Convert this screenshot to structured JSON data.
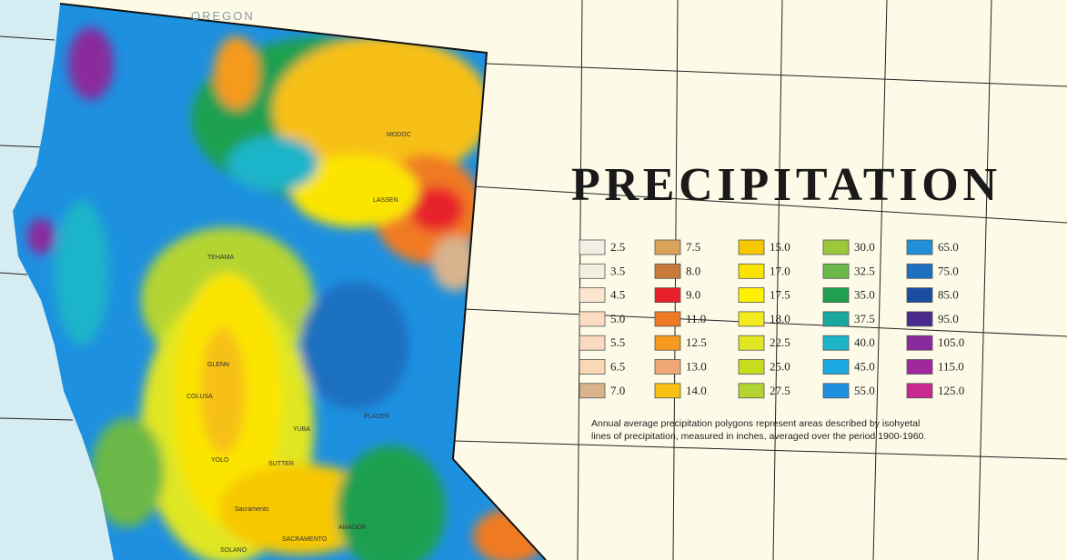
{
  "map": {
    "title": "PRECIPITATION",
    "note": [
      "Annual average precipitation polygons represent areas described by isohyetal",
      "lines of precipitation, measured in inches, averaged over the period 1900-1960."
    ],
    "state_label": "OREGON",
    "place_labels": [
      "MODOC",
      "LASSEN",
      "TEHAMA",
      "GLENN",
      "COLUSA",
      "YOLO",
      "SUTTER",
      "YUBA",
      "Sacramento",
      "SOLANO",
      "SACRAMENTO",
      "AMADOR",
      "PLACER"
    ],
    "legend": [
      {
        "label": "2.5",
        "color": "#f2f0e4"
      },
      {
        "label": "3.5",
        "color": "#f5efe2"
      },
      {
        "label": "4.5",
        "color": "#fbe5cf"
      },
      {
        "label": "5.0",
        "color": "#fbdcc1"
      },
      {
        "label": "5.5",
        "color": "#f9d9bf"
      },
      {
        "label": "6.5",
        "color": "#fad8b6"
      },
      {
        "label": "7.0",
        "color": "#d8b38c"
      },
      {
        "label": "7.5",
        "color": "#d9a35a"
      },
      {
        "label": "8.0",
        "color": "#c87a3a"
      },
      {
        "label": "9.0",
        "color": "#e8202a"
      },
      {
        "label": "11.0",
        "color": "#f07a24"
      },
      {
        "label": "12.5",
        "color": "#f59a1c"
      },
      {
        "label": "13.0",
        "color": "#f0a878"
      },
      {
        "label": "14.0",
        "color": "#f7c012"
      },
      {
        "label": "15.0",
        "color": "#f7c800"
      },
      {
        "label": "17.0",
        "color": "#fbe500"
      },
      {
        "label": "17.5",
        "color": "#fff200"
      },
      {
        "label": "18.0",
        "color": "#f2ec1c"
      },
      {
        "label": "22.5",
        "color": "#e0e622"
      },
      {
        "label": "25.0",
        "color": "#c8dc1e"
      },
      {
        "label": "27.5",
        "color": "#b4d432"
      },
      {
        "label": "30.0",
        "color": "#9cc83c"
      },
      {
        "label": "32.5",
        "color": "#6cb84a"
      },
      {
        "label": "35.0",
        "color": "#1ea050"
      },
      {
        "label": "37.5",
        "color": "#18a8a0"
      },
      {
        "label": "40.0",
        "color": "#1cb4c8"
      },
      {
        "label": "45.0",
        "color": "#1ca8e0"
      },
      {
        "label": "55.0",
        "color": "#1e90e0"
      },
      {
        "label": "65.0",
        "color": "#2090d8"
      },
      {
        "label": "75.0",
        "color": "#1e70c0"
      },
      {
        "label": "85.0",
        "color": "#1a4ea0"
      },
      {
        "label": "95.0",
        "color": "#4a2a8c"
      },
      {
        "label": "105.0",
        "color": "#8a2a9c"
      },
      {
        "label": "115.0",
        "color": "#a0289c"
      },
      {
        "label": "125.0",
        "color": "#c82890"
      }
    ]
  }
}
